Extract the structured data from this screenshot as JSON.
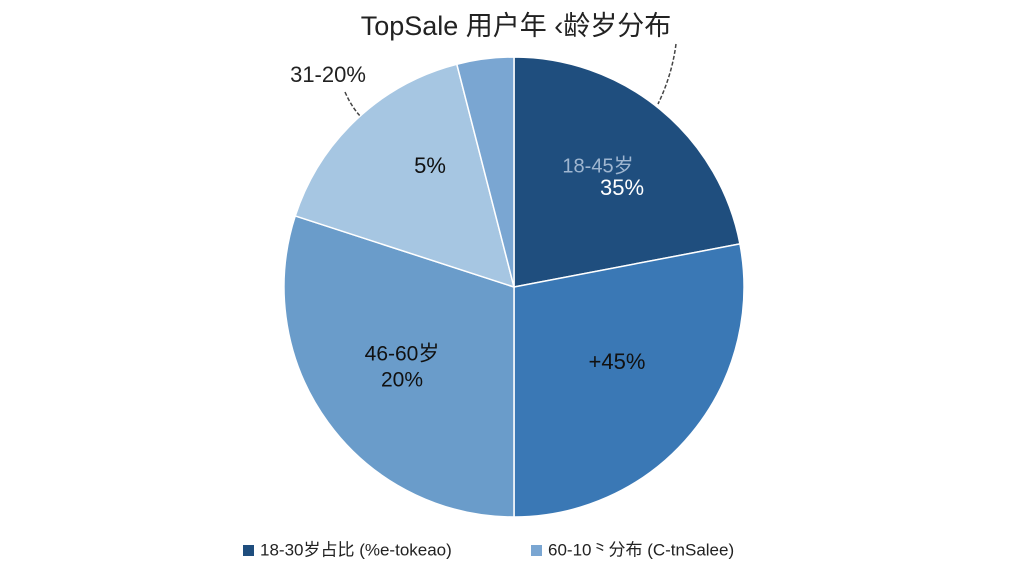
{
  "chart_data": {
    "type": "pie",
    "title": "TopSale 用户年 ‹龄岁分布",
    "values": [
      22,
      28,
      30,
      16,
      4
    ],
    "colors": [
      "#1f4e7e",
      "#3a78b5",
      "#6a9cca",
      "#a6c6e2",
      "#7aa6d2"
    ],
    "annotations": [
      "18-45岁",
      "35%",
      "+45%",
      "46-60岁",
      "20%",
      "5%",
      "31-20%"
    ],
    "legend": [
      {
        "label": "18-30岁占比 (%e-tokeao)",
        "color": "#1f4e7e"
      },
      {
        "label": "60-10⺀分布 (C-tnSalee)",
        "color": "#7aa6d2"
      }
    ]
  }
}
